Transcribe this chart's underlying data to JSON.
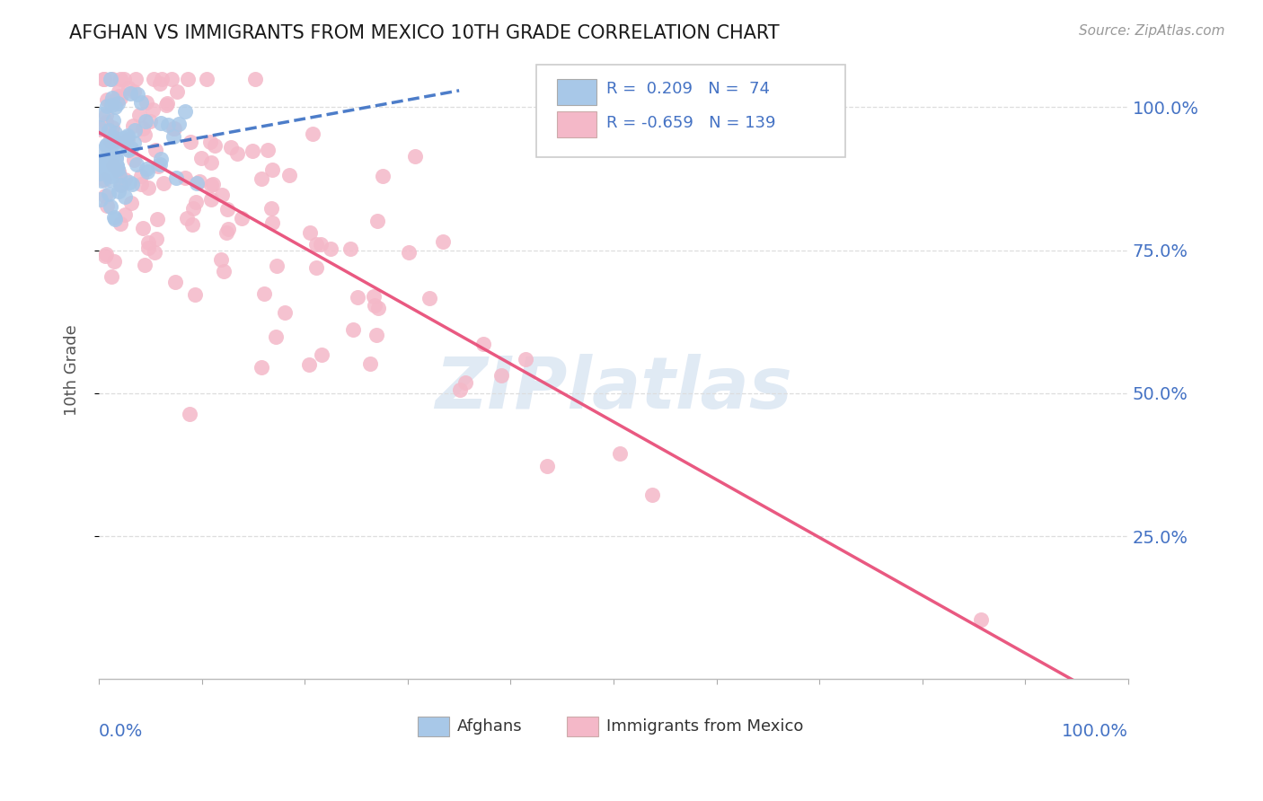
{
  "title": "AFGHAN VS IMMIGRANTS FROM MEXICO 10TH GRADE CORRELATION CHART",
  "source_text": "Source: ZipAtlas.com",
  "ylabel": "10th Grade",
  "legend_blue_r": "0.209",
  "legend_blue_n": "74",
  "legend_pink_r": "-0.659",
  "legend_pink_n": "139",
  "blue_color": "#a8c8e8",
  "blue_edge_color": "#a8c8e8",
  "pink_color": "#f4b8c8",
  "pink_edge_color": "#f4b8c8",
  "blue_line_color": "#3a6fc4",
  "pink_line_color": "#e8507a",
  "watermark_color": "#ccdcee",
  "axis_label_color": "#4472c4",
  "title_color": "#1a1a1a",
  "source_color": "#999999",
  "background_color": "#ffffff",
  "grid_color": "#dddddd",
  "ytick_labels_right": [
    "100.0%",
    "75.0%",
    "50.0%",
    "25.0%"
  ],
  "ytick_vals": [
    1.0,
    0.75,
    0.5,
    0.25
  ]
}
